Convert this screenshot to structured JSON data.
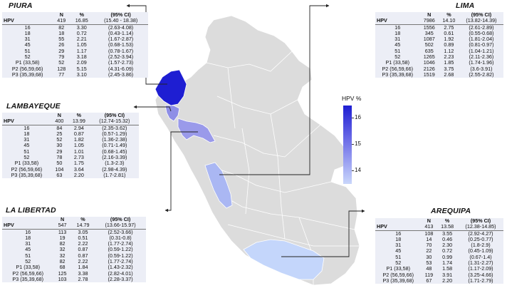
{
  "legend": {
    "title": "HPV %",
    "ticks": [
      "16",
      "15",
      "14"
    ],
    "low_color": "#c9d6fb",
    "high_color": "#1e1ed2"
  },
  "regions": {
    "piura": {
      "title": "PIURA",
      "color": "#1e1ed2",
      "header": {
        "hpv": "HPV",
        "n": "419",
        "pct": "16.85",
        "ci": "(15.40 - 18.38)"
      },
      "rows": [
        [
          "16",
          "82",
          "3.30",
          "(2.63-4.08)"
        ],
        [
          "18",
          "18",
          "0.72",
          "(0.43-1.14)"
        ],
        [
          "31",
          "55",
          "2.21",
          "(1.67-2.87)"
        ],
        [
          "45",
          "26",
          "1.05",
          "(0.68-1.53)"
        ],
        [
          "51",
          "29",
          "1.17",
          "(0.78-1.67)"
        ],
        [
          "52",
          "79",
          "3.18",
          "(2.52-3.94)"
        ],
        [
          "P1 (33,58)",
          "52",
          "2.09",
          "(1.57-2.73)"
        ],
        [
          "P2 (56,59,66)",
          "128",
          "5.15",
          "(4.31-6.09)"
        ],
        [
          "P3 (35,39,68)",
          "77",
          "3.10",
          "(2.45-3.86)"
        ]
      ]
    },
    "lambayeque": {
      "title": "LAMBAYEQUE",
      "color": "#8e8ee6",
      "header": {
        "hpv": "HPV",
        "n": "400",
        "pct": "13.99",
        "ci": "(12.74-15.32)"
      },
      "rows": [
        [
          "16",
          "84",
          "2.94",
          "(2.35-3.62)"
        ],
        [
          "18",
          "25",
          "0.87",
          "(0.57-1.29)"
        ],
        [
          "31",
          "52",
          "1.82",
          "(1.36-2.38)"
        ],
        [
          "45",
          "30",
          "1.05",
          "(0.71-1.49)"
        ],
        [
          "51",
          "29",
          "1.01",
          "(0.68-1.45)"
        ],
        [
          "52",
          "78",
          "2.73",
          "(2.16-3.39)"
        ],
        [
          "P1 (33,58)",
          "50",
          "1.75",
          "(1.3-2.3)"
        ],
        [
          "P2 (56,59,66)",
          "104",
          "3.64",
          "(2.98-4.39)"
        ],
        [
          "P3 (35,39,68)",
          "63",
          "2.20",
          "(1.7-2.81)"
        ]
      ]
    },
    "lalibertad": {
      "title": "LA LIBERTAD",
      "color": "#9a9aea",
      "header": {
        "hpv": "HPV",
        "n": "547",
        "pct": "14.79",
        "ci": "(13.66-15.97)"
      },
      "rows": [
        [
          "16",
          "113",
          "3.05",
          "(2.52-3.66)"
        ],
        [
          "18",
          "19",
          "0.51",
          "(0.31-0.8)"
        ],
        [
          "31",
          "82",
          "2.22",
          "(1.77-2.74)"
        ],
        [
          "45",
          "32",
          "0.87",
          "(0.59-1.22)"
        ],
        [
          "51",
          "32",
          "0.87",
          "(0.59-1.22)"
        ],
        [
          "52",
          "82",
          "2.22",
          "(1.77-2.74)"
        ],
        [
          "P1 (33,58)",
          "68",
          "1.84",
          "(1.43-2.32)"
        ],
        [
          "P2 (56,59,66)",
          "125",
          "3.38",
          "(2.82-4.01)"
        ],
        [
          "P3 (35,39,68)",
          "103",
          "2.78",
          "(2.28-3.37)"
        ]
      ]
    },
    "lima": {
      "title": "LIMA",
      "color": "#aab7f3",
      "header": {
        "hpv": "HPV",
        "n": "7986",
        "pct": "14.10",
        "ci": "(13.82-14.39)"
      },
      "rows": [
        [
          "16",
          "1556",
          "2.75",
          "(2.61-2.89)"
        ],
        [
          "18",
          "345",
          "0.61",
          "(0.55-0.68)"
        ],
        [
          "31",
          "1087",
          "1.92",
          "(1.81-2.04)"
        ],
        [
          "45",
          "502",
          "0.89",
          "(0.81-0.97)"
        ],
        [
          "51",
          "635",
          "1.12",
          "(1.04-1.21)"
        ],
        [
          "52",
          "1265",
          "2.23",
          "(2.11-2.36)"
        ],
        [
          "P1 (33,58)",
          "1046",
          "1.85",
          "(1.74-1.96)"
        ],
        [
          "P2 (56,59,66)",
          "2126",
          "3.75",
          "(3.6-3.91)"
        ],
        [
          "P3 (35,39,68)",
          "1519",
          "2.68",
          "(2.55-2.82)"
        ]
      ]
    },
    "arequipa": {
      "title": "AREQUIPA",
      "color": "#c4d6fb",
      "header": {
        "hpv": "HPV",
        "n": "413",
        "pct": "13.58",
        "ci": "(12.38-14.85)"
      },
      "rows": [
        [
          "16",
          "108",
          "3.55",
          "(2.92-4.27)"
        ],
        [
          "18",
          "14",
          "0.46",
          "(0.25-0.77)"
        ],
        [
          "31",
          "70",
          "2.30",
          "(1.8-2.9)"
        ],
        [
          "45",
          "22",
          "0.72",
          "(0.45-1.09)"
        ],
        [
          "51",
          "30",
          "0.99",
          "(0.67-1.4)"
        ],
        [
          "52",
          "53",
          "1.74",
          "(1.31-2.27)"
        ],
        [
          "P1 (33,58)",
          "48",
          "1.58",
          "(1.17-2.09)"
        ],
        [
          "P2 (56,59,66)",
          "119",
          "3.91",
          "(3.25-4.66)"
        ],
        [
          "P3 (35,39,68)",
          "67",
          "2.20",
          "(1.71-2.79)"
        ]
      ]
    }
  }
}
